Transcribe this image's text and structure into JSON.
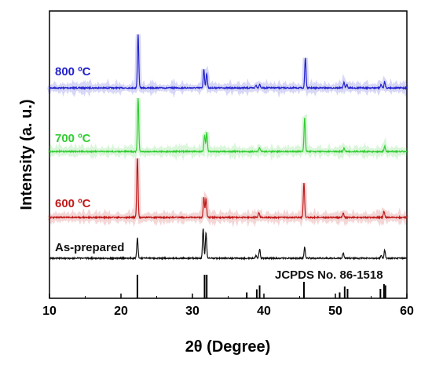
{
  "chart_data": {
    "type": "line",
    "xlabel": "2θ (Degree)",
    "ylabel": "Intensity (a. u.)",
    "xlim": [
      10,
      60
    ],
    "x_ticks": [
      "10",
      "20",
      "30",
      "40",
      "50",
      "60"
    ],
    "grid": false,
    "series": [
      {
        "name": "800 ºC",
        "color": "#2222cc",
        "baseline_rel": 1.0,
        "peaks": [
          {
            "x": 22.4,
            "h": 0.8
          },
          {
            "x": 31.6,
            "h": 0.28
          },
          {
            "x": 32.0,
            "h": 0.22
          },
          {
            "x": 38.9,
            "h": 0.04
          },
          {
            "x": 39.4,
            "h": 0.06
          },
          {
            "x": 45.8,
            "h": 0.45
          },
          {
            "x": 51.2,
            "h": 0.08
          },
          {
            "x": 51.6,
            "h": 0.05
          },
          {
            "x": 56.4,
            "h": 0.05
          },
          {
            "x": 56.9,
            "h": 0.09
          }
        ]
      },
      {
        "name": "700 ºC",
        "color": "#33cc33",
        "baseline_rel": 1.0,
        "peaks": [
          {
            "x": 22.4,
            "h": 0.8
          },
          {
            "x": 31.7,
            "h": 0.25
          },
          {
            "x": 32.0,
            "h": 0.28
          },
          {
            "x": 39.4,
            "h": 0.06
          },
          {
            "x": 45.7,
            "h": 0.5
          },
          {
            "x": 51.2,
            "h": 0.05
          },
          {
            "x": 56.9,
            "h": 0.08
          }
        ]
      },
      {
        "name": "600 ºC",
        "color": "#c01a1a",
        "baseline_rel": 1.0,
        "peaks": [
          {
            "x": 22.3,
            "h": 0.9
          },
          {
            "x": 31.6,
            "h": 0.3
          },
          {
            "x": 31.9,
            "h": 0.28
          },
          {
            "x": 39.3,
            "h": 0.07
          },
          {
            "x": 45.6,
            "h": 0.52
          },
          {
            "x": 51.1,
            "h": 0.06
          },
          {
            "x": 56.8,
            "h": 0.09
          }
        ]
      },
      {
        "name": "As-prepared",
        "color": "#111111",
        "baseline_rel": 1.0,
        "peaks": [
          {
            "x": 22.3,
            "h": 0.3
          },
          {
            "x": 31.5,
            "h": 0.45
          },
          {
            "x": 31.9,
            "h": 0.38
          },
          {
            "x": 38.9,
            "h": 0.04
          },
          {
            "x": 39.4,
            "h": 0.14
          },
          {
            "x": 45.7,
            "h": 0.16
          },
          {
            "x": 51.1,
            "h": 0.08
          },
          {
            "x": 56.4,
            "h": 0.04
          },
          {
            "x": 56.9,
            "h": 0.12
          }
        ]
      }
    ],
    "reference": {
      "name": "JCPDS No. 86-1518",
      "lines": [
        {
          "x": 22.3,
          "h": 1.0
        },
        {
          "x": 31.7,
          "h": 1.0
        },
        {
          "x": 32.0,
          "h": 1.0
        },
        {
          "x": 37.6,
          "h": 0.25
        },
        {
          "x": 39.0,
          "h": 0.38
        },
        {
          "x": 39.4,
          "h": 0.55
        },
        {
          "x": 45.6,
          "h": 0.7
        },
        {
          "x": 50.6,
          "h": 0.25
        },
        {
          "x": 51.3,
          "h": 0.5
        },
        {
          "x": 51.7,
          "h": 0.4
        },
        {
          "x": 56.3,
          "h": 0.4
        },
        {
          "x": 56.8,
          "h": 0.6
        },
        {
          "x": 57.0,
          "h": 0.55
        }
      ]
    }
  }
}
